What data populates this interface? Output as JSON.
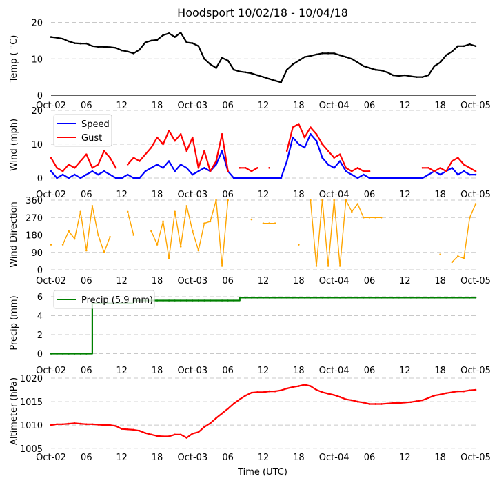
{
  "title": "Hoodsport 10/02/18 - 10/04/18",
  "xlabel": "Time (UTC)",
  "x_ticks": [
    "Oct-02",
    "06",
    "12",
    "18",
    "Oct-03",
    "06",
    "12",
    "18",
    "Oct-04",
    "06",
    "12",
    "18",
    "Oct-05"
  ],
  "colors": {
    "temp": "#000000",
    "speed": "#0000ff",
    "gust": "#ff0000",
    "direction": "#ffa500",
    "precip": "#008000",
    "altimeter": "#ff0000",
    "grid": "#c8c8c8"
  },
  "chart_data": [
    {
      "type": "line",
      "ylabel": "Temp ( $^\\circ$C)",
      "ylabel_text": "Temp ( °C)",
      "ylim": [
        0,
        20
      ],
      "yticks": [
        "0",
        "10",
        "20"
      ],
      "x_unit": "hours since Oct-02 00:00 UTC",
      "x_range": [
        0,
        72
      ],
      "series": [
        {
          "name": "Temp",
          "color": "#000000",
          "values": [
            16,
            15.8,
            15.5,
            14.8,
            14.3,
            14.2,
            14.2,
            13.5,
            13.3,
            13.3,
            13.2,
            13,
            12.3,
            12,
            11.5,
            12.5,
            14.5,
            15,
            15.2,
            16.5,
            17,
            16,
            17.2,
            14.5,
            14.3,
            13.5,
            10,
            8.5,
            7.5,
            10.3,
            9.5,
            7,
            6.5,
            6.3,
            6,
            5.5,
            5,
            4.5,
            4,
            3.5,
            7,
            8.5,
            9.5,
            10.5,
            10.8,
            11.2,
            11.5,
            11.5,
            11.5,
            11,
            10.5,
            10,
            9,
            8,
            7.5,
            7,
            6.8,
            6.3,
            5.5,
            5.3,
            5.5,
            5.2,
            5,
            5,
            5.5,
            8,
            9,
            11,
            12,
            13.5,
            13.5,
            14,
            13.5
          ]
        }
      ]
    },
    {
      "type": "line",
      "ylabel": "Wind (mph)",
      "ylim": [
        0,
        20
      ],
      "yticks": [
        "0",
        "10",
        "20"
      ],
      "legend": [
        "Speed",
        "Gust"
      ],
      "legend_position": "upper-left",
      "x_range": [
        0,
        72
      ],
      "series": [
        {
          "name": "Speed",
          "color": "#0000ff",
          "values": [
            2,
            0,
            1,
            0,
            1,
            0,
            1,
            2,
            1,
            2,
            1,
            0,
            0,
            1,
            0,
            0,
            2,
            3,
            4,
            3,
            5,
            2,
            4,
            3,
            1,
            2,
            3,
            2,
            4,
            8,
            2,
            0,
            0,
            0,
            0,
            0,
            0,
            0,
            0,
            0,
            5,
            12,
            10,
            9,
            13,
            11,
            6,
            4,
            3,
            5,
            2,
            1,
            0,
            1,
            0,
            0,
            0,
            0,
            0,
            0,
            0,
            0,
            0,
            0,
            1,
            2,
            1,
            2,
            3,
            1,
            2,
            1,
            1
          ]
        },
        {
          "name": "Gust",
          "color": "#ff0000",
          "values": [
            6,
            3,
            2,
            4,
            3,
            5,
            7,
            3,
            4,
            8,
            6,
            3,
            null,
            4,
            6,
            5,
            7,
            9,
            12,
            10,
            14,
            11,
            13,
            8,
            12,
            3,
            8,
            2,
            5,
            13,
            2,
            null,
            3,
            3,
            2,
            3,
            null,
            3,
            null,
            null,
            8,
            15,
            16,
            12,
            15,
            13,
            10,
            8,
            6,
            7,
            3,
            2,
            3,
            2,
            2,
            null,
            null,
            null,
            null,
            null,
            null,
            null,
            null,
            3,
            3,
            2,
            3,
            2,
            5,
            6,
            4,
            3,
            2
          ]
        }
      ]
    },
    {
      "type": "line",
      "ylabel": "Wind Direction",
      "ylim": [
        0,
        360
      ],
      "yticks": [
        "0",
        "90",
        "180",
        "270",
        "360"
      ],
      "x_range": [
        0,
        72
      ],
      "series": [
        {
          "name": "Direction",
          "color": "#ffa500",
          "values": [
            130,
            null,
            130,
            200,
            160,
            300,
            100,
            330,
            180,
            90,
            170,
            null,
            null,
            300,
            180,
            null,
            null,
            200,
            130,
            250,
            60,
            300,
            120,
            330,
            200,
            100,
            240,
            250,
            360,
            20,
            360,
            null,
            null,
            null,
            260,
            null,
            240,
            240,
            240,
            null,
            null,
            null,
            130,
            null,
            360,
            20,
            360,
            20,
            360,
            20,
            360,
            300,
            340,
            270,
            270,
            270,
            270,
            null,
            null,
            null,
            null,
            null,
            null,
            null,
            null,
            null,
            80,
            null,
            40,
            70,
            60,
            270,
            340
          ]
        }
      ]
    },
    {
      "type": "line",
      "ylabel": "Precip (mm)",
      "ylim": [
        0,
        6
      ],
      "yticks": [
        "0",
        "2",
        "4",
        "6"
      ],
      "legend": [
        "Precip (5.9 mm)"
      ],
      "legend_position": "upper-left",
      "x_range": [
        0,
        72
      ],
      "series": [
        {
          "name": "Precip (5.9 mm)",
          "color": "#008000",
          "values": [
            0,
            0,
            0,
            0,
            0,
            0,
            0,
            5.3,
            5.3,
            5.3,
            5.3,
            5.3,
            5.3,
            5.3,
            5.6,
            5.6,
            5.6,
            5.6,
            5.6,
            5.6,
            5.6,
            5.6,
            5.6,
            5.6,
            5.6,
            5.6,
            5.6,
            5.6,
            5.6,
            5.6,
            5.6,
            5.6,
            5.9,
            5.9,
            5.9,
            5.9,
            5.9,
            5.9,
            5.9,
            5.9,
            5.9,
            5.9,
            5.9,
            5.9,
            5.9,
            5.9,
            5.9,
            5.9,
            5.9,
            5.9,
            5.9,
            5.9,
            5.9,
            5.9,
            5.9,
            5.9,
            5.9,
            5.9,
            5.9,
            5.9,
            5.9,
            5.9,
            5.9,
            5.9,
            5.9,
            5.9,
            5.9,
            5.9,
            5.9,
            5.9,
            5.9,
            5.9,
            5.9
          ]
        }
      ]
    },
    {
      "type": "line",
      "ylabel": "Altimeter (hPa)",
      "ylim": [
        1004,
        1020
      ],
      "yticks": [
        "1005",
        "1010",
        "1015",
        "1020"
      ],
      "x_range": [
        0,
        72
      ],
      "series": [
        {
          "name": "Altimeter",
          "color": "#ff0000",
          "values": [
            1010,
            1010.2,
            1010.2,
            1010.3,
            1010.4,
            1010.3,
            1010.2,
            1010.2,
            1010.1,
            1010,
            1010,
            1009.8,
            1009.2,
            1009.1,
            1009,
            1008.8,
            1008.3,
            1008,
            1007.7,
            1007.6,
            1007.6,
            1008,
            1008,
            1007.3,
            1008.2,
            1008.5,
            1009.6,
            1010.4,
            1011.5,
            1012.5,
            1013.5,
            1014.6,
            1015.5,
            1016.3,
            1016.9,
            1017,
            1017,
            1017.2,
            1017.2,
            1017.4,
            1017.8,
            1018.1,
            1018.3,
            1018.6,
            1018.3,
            1017.5,
            1017,
            1016.7,
            1016.4,
            1016,
            1015.5,
            1015.3,
            1015,
            1014.8,
            1014.5,
            1014.5,
            1014.5,
            1014.6,
            1014.7,
            1014.7,
            1014.8,
            1014.9,
            1015.1,
            1015.3,
            1015.8,
            1016.3,
            1016.5,
            1016.8,
            1017,
            1017.2,
            1017.2,
            1017.4,
            1017.5
          ]
        }
      ]
    }
  ]
}
